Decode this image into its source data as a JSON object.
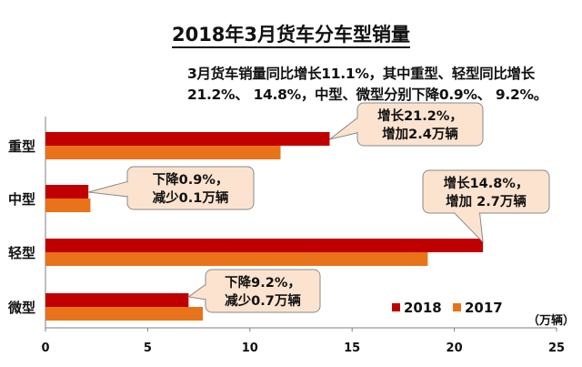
{
  "chart_data": {
    "type": "bar",
    "orientation": "horizontal",
    "title": "2018年3月货车分车型销量",
    "subtitle_lines": [
      "3月货车销量同比增长11.1%，其中重型、轻型同比增长",
      "21.2%、 14.8%，中型、微型分别下降0.9%、 9.2%。"
    ],
    "categories": [
      "重型",
      "中型",
      "轻型",
      "微型"
    ],
    "series": [
      {
        "name": "2018",
        "color": "#c00000",
        "values": [
          13.9,
          2.1,
          21.4,
          7.0
        ]
      },
      {
        "name": "2017",
        "color": "#e8731a",
        "values": [
          11.5,
          2.2,
          18.7,
          7.7
        ]
      }
    ],
    "xlim": [
      0,
      25
    ],
    "x_ticks": [
      "0",
      "5",
      "10",
      "15",
      "20",
      "25"
    ],
    "unit": "（万辆）",
    "grid": false,
    "legend_position": "bottom-right",
    "annotations": [
      {
        "category": "重型",
        "lines": [
          "增长21.2%，",
          "增加2.4万辆"
        ]
      },
      {
        "category": "中型",
        "lines": [
          "下降0.9%，",
          "减少0.1万辆"
        ]
      },
      {
        "category": "轻型",
        "lines": [
          "增长14.8%，",
          "增加 2.7万辆"
        ]
      },
      {
        "category": "微型",
        "lines": [
          "下降9.2%，",
          "减少0.7万辆"
        ]
      }
    ],
    "callout_fill": "#fbe3cf"
  }
}
